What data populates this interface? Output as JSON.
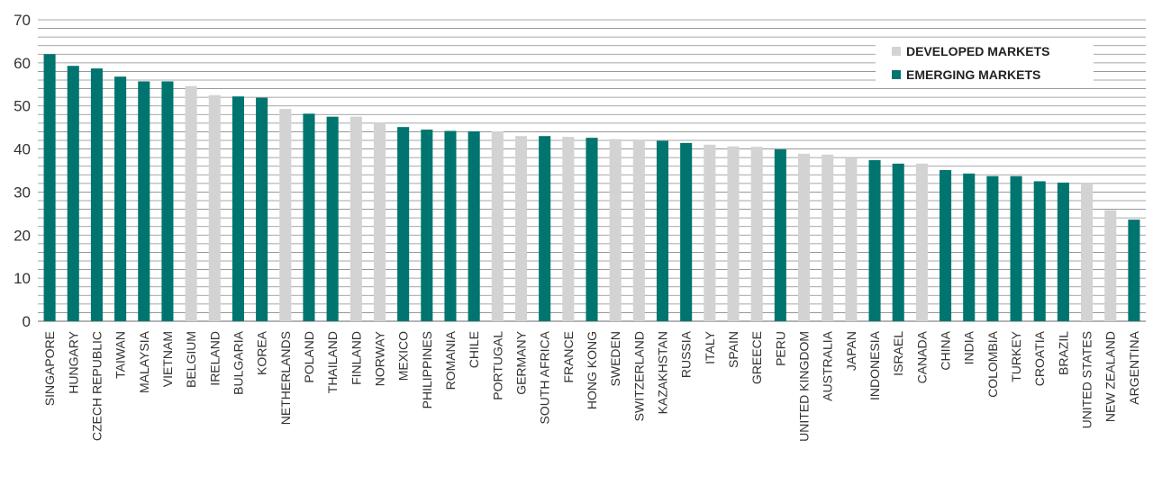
{
  "chart_data": {
    "type": "bar",
    "title": "",
    "xlabel": "",
    "ylabel": "",
    "ylim": [
      0,
      70
    ],
    "y_ticks": [
      0,
      10,
      20,
      30,
      40,
      50,
      60,
      70
    ],
    "grid": "horizontal, every 2 units",
    "legend_position": "top-right",
    "categories": [
      "SINGAPORE",
      "HUNGARY",
      "CZECH REPUBLIC",
      "TAIWAN",
      "MALAYSIA",
      "VIETNAM",
      "BELGIUM",
      "IRELAND",
      "BULGARIA",
      "KOREA",
      "NETHERLANDS",
      "POLAND",
      "THAILAND",
      "FINLAND",
      "NORWAY",
      "MEXICO",
      "PHILIPPINES",
      "ROMANIA",
      "CHILE",
      "PORTUGAL",
      "GERMANY",
      "SOUTH AFRICA",
      "FRANCE",
      "HONG KONG",
      "SWEDEN",
      "SWITZERLAND",
      "KAZAKHSTAN",
      "RUSSIA",
      "ITALY",
      "SPAIN",
      "GREECE",
      "PERU",
      "UNITED KINGDOM",
      "AUSTRALIA",
      "JAPAN",
      "INDONESIA",
      "ISRAEL",
      "CANADA",
      "CHINA",
      "INDIA",
      "COLOMBIA",
      "TURKEY",
      "CROATIA",
      "BRAZIL",
      "UNITED STATES",
      "NEW ZEALAND",
      "ARGENTINA"
    ],
    "values": [
      62.0,
      59.3,
      58.7,
      56.8,
      55.7,
      55.7,
      54.6,
      52.5,
      52.2,
      51.9,
      49.3,
      48.2,
      47.5,
      47.5,
      46.2,
      45.1,
      44.5,
      44.2,
      44.1,
      44.1,
      43.0,
      43.0,
      42.8,
      42.6,
      42.3,
      42.2,
      41.9,
      41.4,
      41.0,
      40.6,
      40.5,
      39.9,
      38.9,
      38.7,
      37.8,
      37.4,
      36.6,
      36.6,
      35.1,
      34.3,
      33.7,
      33.7,
      32.5,
      32.2,
      32.0,
      25.8,
      23.6
    ],
    "market": [
      "E",
      "E",
      "E",
      "E",
      "E",
      "E",
      "D",
      "D",
      "E",
      "E",
      "D",
      "E",
      "E",
      "D",
      "D",
      "E",
      "E",
      "E",
      "E",
      "D",
      "D",
      "E",
      "D",
      "E",
      "D",
      "D",
      "E",
      "E",
      "D",
      "D",
      "D",
      "E",
      "D",
      "D",
      "D",
      "E",
      "E",
      "D",
      "E",
      "E",
      "E",
      "E",
      "E",
      "E",
      "D",
      "D",
      "E"
    ],
    "series": [
      {
        "key": "D",
        "name": "DEVELOPED MARKETS",
        "color": "#d3d3d3"
      },
      {
        "key": "E",
        "name": "EMERGING MARKETS",
        "color": "#007570"
      }
    ]
  }
}
